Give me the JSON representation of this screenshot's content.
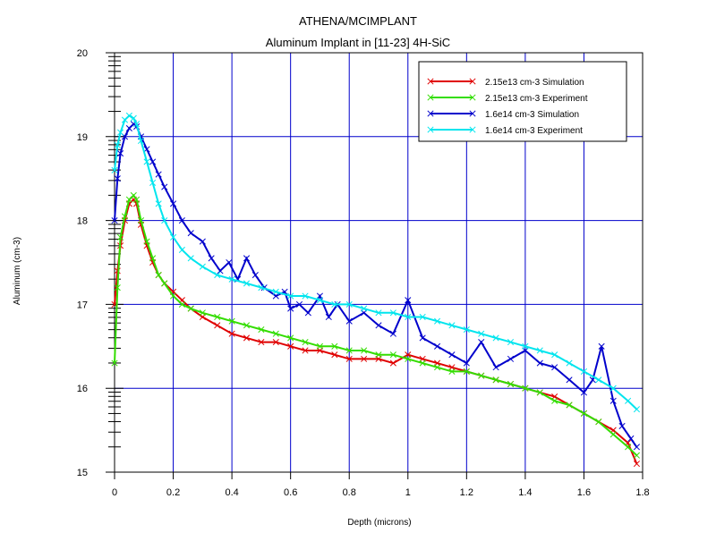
{
  "chart_data": {
    "type": "line",
    "title": "ATHENA/MCIMPLANT",
    "subtitle": "Aluminum Implant in [11-23] 4H-SiC",
    "xlabel": "Depth (microns)",
    "ylabel": "Aluminum (cm-3)",
    "xlim": [
      0,
      1.8
    ],
    "ylim": [
      15,
      20
    ],
    "y_scale": "log10",
    "x_ticks": [
      0,
      0.2,
      0.4,
      0.6,
      0.8,
      1,
      1.2,
      1.4,
      1.6,
      1.8
    ],
    "x_tick_labels": [
      "0",
      "0.2",
      "0.4",
      "0.6",
      "0.8",
      "1",
      "1.2",
      "1.4",
      "1.6",
      "1.8"
    ],
    "y_ticks": [
      15,
      16,
      17,
      18,
      19,
      20
    ],
    "y_tick_labels": [
      "15",
      "16",
      "17",
      "18",
      "19",
      "20"
    ],
    "grid": true,
    "grid_color": "#0000cc",
    "legend_position": "top-right",
    "series": [
      {
        "name": "2.15e13 cm-3 Simulation",
        "color": "#e00000",
        "marker": "x",
        "x": [
          0.0,
          0.01,
          0.02,
          0.035,
          0.05,
          0.065,
          0.075,
          0.09,
          0.11,
          0.13,
          0.15,
          0.17,
          0.2,
          0.23,
          0.26,
          0.3,
          0.35,
          0.4,
          0.45,
          0.5,
          0.55,
          0.6,
          0.65,
          0.7,
          0.75,
          0.8,
          0.85,
          0.9,
          0.95,
          1.0,
          1.05,
          1.1,
          1.15,
          1.2,
          1.25,
          1.3,
          1.35,
          1.4,
          1.45,
          1.5,
          1.55,
          1.6,
          1.65,
          1.7,
          1.75,
          1.78
        ],
        "values": [
          17.0,
          17.4,
          17.7,
          18.0,
          18.2,
          18.25,
          18.2,
          17.95,
          17.7,
          17.5,
          17.35,
          17.25,
          17.15,
          17.05,
          16.95,
          16.85,
          16.75,
          16.65,
          16.6,
          16.55,
          16.55,
          16.5,
          16.45,
          16.45,
          16.4,
          16.35,
          16.35,
          16.35,
          16.3,
          16.4,
          16.35,
          16.3,
          16.25,
          16.2,
          16.15,
          16.1,
          16.05,
          16.0,
          15.95,
          15.9,
          15.8,
          15.7,
          15.6,
          15.5,
          15.35,
          15.1
        ]
      },
      {
        "name": "2.15e13 cm-3 Experiment",
        "color": "#33dd00",
        "marker": "x",
        "x": [
          0.0,
          0.01,
          0.02,
          0.035,
          0.05,
          0.065,
          0.075,
          0.09,
          0.11,
          0.13,
          0.15,
          0.17,
          0.2,
          0.23,
          0.26,
          0.3,
          0.35,
          0.4,
          0.45,
          0.5,
          0.55,
          0.6,
          0.65,
          0.7,
          0.75,
          0.8,
          0.85,
          0.9,
          0.95,
          1.0,
          1.05,
          1.1,
          1.15,
          1.2,
          1.25,
          1.3,
          1.35,
          1.4,
          1.45,
          1.5,
          1.55,
          1.6,
          1.65,
          1.7,
          1.75,
          1.78
        ],
        "values": [
          16.3,
          17.2,
          17.8,
          18.05,
          18.25,
          18.3,
          18.25,
          18.0,
          17.75,
          17.55,
          17.35,
          17.25,
          17.1,
          17.0,
          16.95,
          16.9,
          16.85,
          16.8,
          16.75,
          16.7,
          16.65,
          16.6,
          16.55,
          16.5,
          16.5,
          16.45,
          16.45,
          16.4,
          16.4,
          16.35,
          16.3,
          16.25,
          16.2,
          16.2,
          16.15,
          16.1,
          16.05,
          16.0,
          15.95,
          15.85,
          15.8,
          15.7,
          15.6,
          15.45,
          15.3,
          15.2
        ]
      },
      {
        "name": "1.6e14 cm-3 Simulation",
        "color": "#0000cc",
        "marker": "x",
        "x": [
          0.0,
          0.01,
          0.02,
          0.035,
          0.05,
          0.065,
          0.075,
          0.09,
          0.11,
          0.13,
          0.15,
          0.17,
          0.2,
          0.23,
          0.26,
          0.3,
          0.33,
          0.36,
          0.39,
          0.42,
          0.45,
          0.48,
          0.51,
          0.55,
          0.58,
          0.6,
          0.63,
          0.66,
          0.7,
          0.73,
          0.76,
          0.8,
          0.85,
          0.9,
          0.95,
          1.0,
          1.05,
          1.1,
          1.15,
          1.2,
          1.25,
          1.3,
          1.35,
          1.4,
          1.45,
          1.5,
          1.55,
          1.6,
          1.63,
          1.66,
          1.7,
          1.73,
          1.76,
          1.78
        ],
        "values": [
          18.0,
          18.5,
          18.8,
          19.0,
          19.1,
          19.15,
          19.12,
          19.0,
          18.85,
          18.7,
          18.55,
          18.4,
          18.2,
          18.0,
          17.85,
          17.75,
          17.55,
          17.4,
          17.5,
          17.3,
          17.55,
          17.35,
          17.2,
          17.1,
          17.15,
          16.95,
          17.0,
          16.9,
          17.1,
          16.85,
          17.0,
          16.8,
          16.9,
          16.75,
          16.65,
          17.05,
          16.6,
          16.5,
          16.4,
          16.3,
          16.55,
          16.25,
          16.35,
          16.45,
          16.3,
          16.25,
          16.1,
          15.95,
          16.1,
          16.5,
          15.85,
          15.55,
          15.4,
          15.3
        ]
      },
      {
        "name": "1.6e14 cm-3 Experiment",
        "color": "#00e5ee",
        "marker": "x",
        "x": [
          0.0,
          0.01,
          0.02,
          0.035,
          0.05,
          0.065,
          0.075,
          0.09,
          0.11,
          0.13,
          0.15,
          0.17,
          0.2,
          0.23,
          0.26,
          0.3,
          0.35,
          0.4,
          0.45,
          0.5,
          0.55,
          0.6,
          0.65,
          0.7,
          0.75,
          0.8,
          0.85,
          0.9,
          0.95,
          1.0,
          1.05,
          1.1,
          1.15,
          1.2,
          1.25,
          1.3,
          1.35,
          1.4,
          1.45,
          1.5,
          1.55,
          1.6,
          1.65,
          1.7,
          1.75,
          1.78
        ],
        "values": [
          18.6,
          18.9,
          19.05,
          19.2,
          19.25,
          19.22,
          19.15,
          18.95,
          18.7,
          18.45,
          18.2,
          18.0,
          17.8,
          17.65,
          17.55,
          17.45,
          17.35,
          17.3,
          17.25,
          17.2,
          17.15,
          17.1,
          17.1,
          17.05,
          17.0,
          17.0,
          16.95,
          16.9,
          16.9,
          16.85,
          16.85,
          16.8,
          16.75,
          16.7,
          16.65,
          16.6,
          16.55,
          16.5,
          16.45,
          16.4,
          16.3,
          16.2,
          16.1,
          16.0,
          15.85,
          15.75
        ]
      }
    ]
  }
}
